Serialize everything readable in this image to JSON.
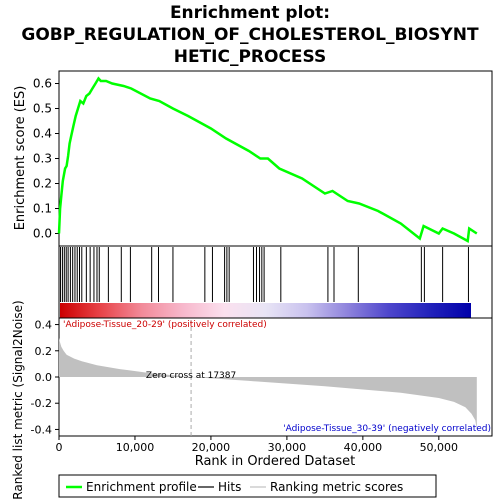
{
  "chart_data": {
    "type": "line",
    "title_lines": [
      "Enrichment plot:",
      "GOBP_REGULATION_OF_CHOLESTEROL_BIOSYNT",
      "HETIC_PROCESS"
    ],
    "es_panel": {
      "ylabel": "Enrichment score (ES)",
      "ylim": [
        -0.05,
        0.65
      ],
      "yticks": [
        0.0,
        0.1,
        0.2,
        0.3,
        0.4,
        0.5,
        0.6
      ],
      "ytick_labels": [
        "0.0",
        "0.1",
        "0.2",
        "0.3",
        "0.4",
        "0.5",
        "0.6"
      ],
      "series": [
        {
          "name": "Enrichment profile",
          "color": "#00ff00",
          "x": [
            0,
            150,
            300,
            500,
            800,
            1000,
            1200,
            1400,
            1600,
            1900,
            2200,
            2500,
            2800,
            3200,
            3600,
            4000,
            4400,
            4800,
            5200,
            5500,
            6200,
            7000,
            8500,
            9500,
            12000,
            13200,
            15000,
            17000,
            20000,
            22000,
            25000,
            26500,
            27500,
            29000,
            32000,
            35000,
            36000,
            38000,
            39500,
            42000,
            45000,
            47500,
            48000,
            50000,
            50500,
            52000,
            53800,
            54000,
            55000
          ],
          "y": [
            0.0,
            0.1,
            0.15,
            0.21,
            0.26,
            0.27,
            0.31,
            0.36,
            0.39,
            0.43,
            0.47,
            0.5,
            0.53,
            0.52,
            0.55,
            0.56,
            0.58,
            0.6,
            0.62,
            0.61,
            0.61,
            0.6,
            0.59,
            0.58,
            0.54,
            0.53,
            0.5,
            0.47,
            0.42,
            0.38,
            0.33,
            0.3,
            0.3,
            0.26,
            0.22,
            0.16,
            0.17,
            0.13,
            0.12,
            0.09,
            0.04,
            -0.02,
            0.03,
            0.0,
            0.02,
            0.0,
            -0.03,
            0.02,
            0.0
          ]
        }
      ]
    },
    "hits": [
      200,
      450,
      700,
      950,
      1200,
      1500,
      1800,
      2100,
      2400,
      2700,
      3000,
      3600,
      4100,
      4600,
      5000,
      5300,
      6500,
      8200,
      9400,
      12200,
      13100,
      15000,
      19200,
      20200,
      21800,
      22100,
      22400,
      25600,
      26000,
      26400,
      26700,
      27000,
      29200,
      35400,
      36200,
      39400,
      47700,
      48100,
      50500,
      53900
    ],
    "colorbar_stops": [
      "#cc0000",
      "#e8454a",
      "#f28b9a",
      "#f7b8cc",
      "#fbe0ee",
      "#e8e4f5",
      "#c9c2ee",
      "#8e83dc",
      "#4e46cc",
      "#2222bb",
      "#0000aa"
    ],
    "pos_label": "'Adipose-Tissue_20-29' (positively correlated)",
    "neg_label": "'Adipose-Tissue_30-39' (negatively correlated)",
    "zero_cross_label": "Zero cross at 17387",
    "zero_cross_x": 17387,
    "metric_panel": {
      "ylabel": "Ranked list metric (Signal2Noise)",
      "ylim": [
        -0.45,
        0.45
      ],
      "yticks": [
        -0.4,
        -0.2,
        0.0,
        0.2,
        0.4
      ],
      "ytick_labels": [
        "-0.4",
        "-0.2",
        "0.0",
        "0.2",
        "0.4"
      ],
      "curve_x": [
        0,
        100,
        300,
        600,
        1000,
        2000,
        3000,
        5000,
        8000,
        12000,
        17387,
        25000,
        35000,
        45000,
        50000,
        52000,
        53500,
        54300,
        54800,
        55000
      ],
      "curve_y": [
        0.3,
        0.27,
        0.23,
        0.2,
        0.17,
        0.14,
        0.12,
        0.09,
        0.06,
        0.03,
        0.0,
        -0.03,
        -0.07,
        -0.12,
        -0.16,
        -0.19,
        -0.23,
        -0.28,
        -0.33,
        -0.4
      ]
    },
    "xaxis": {
      "label": "Rank in Ordered Dataset",
      "range": [
        0,
        57000
      ],
      "ticks": [
        0,
        10000,
        20000,
        30000,
        40000,
        50000
      ],
      "tick_labels": [
        "0",
        "10,000",
        "20,000",
        "30,000",
        "40,000",
        "50,000"
      ]
    },
    "legend": {
      "placement": "bottom",
      "items": [
        {
          "label": "Enrichment profile",
          "color": "#00ff00"
        },
        {
          "label": "Hits",
          "color": "#000000"
        },
        {
          "label": "Ranking metric scores",
          "color": "#c0c0c0"
        }
      ]
    }
  }
}
